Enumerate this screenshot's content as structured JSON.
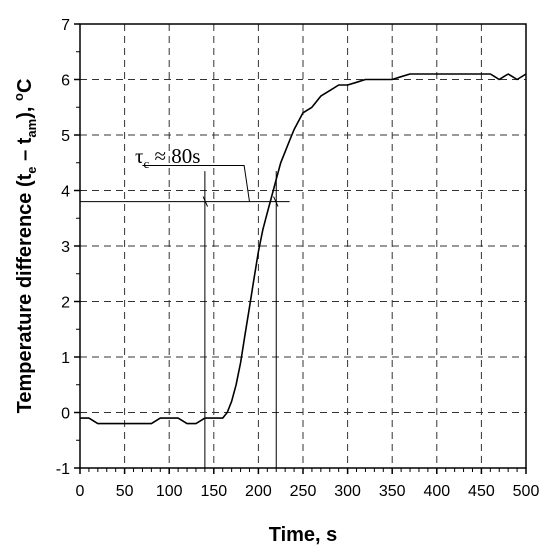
{
  "chart_data": {
    "type": "line",
    "title": "",
    "xlabel": "Time, s",
    "ylabel": {
      "main": "Temperature difference (t",
      "sub1": "e",
      "mid": " – t",
      "sub2": "am",
      "end": "), ",
      "sup": "o",
      "unit": "C"
    },
    "xlim": [
      0,
      500
    ],
    "ylim": [
      -1,
      7
    ],
    "xticks": [
      0,
      50,
      100,
      150,
      200,
      250,
      300,
      350,
      400,
      450,
      500
    ],
    "yticks": [
      -1,
      0,
      1,
      2,
      3,
      4,
      5,
      6,
      7
    ],
    "grid": true,
    "series": [
      {
        "x": [
          0,
          10,
          20,
          30,
          40,
          50,
          60,
          70,
          80,
          90,
          100,
          110,
          120,
          130,
          140,
          150,
          160,
          165,
          170,
          175,
          180,
          185,
          190,
          195,
          200,
          205,
          210,
          215,
          220,
          225,
          230,
          235,
          240,
          250,
          260,
          270,
          280,
          290,
          300,
          310,
          320,
          330,
          340,
          350,
          360,
          370,
          380,
          400,
          420,
          440,
          460,
          465,
          470,
          475,
          480,
          485,
          490,
          500
        ],
        "y": [
          -0.1,
          -0.1,
          -0.2,
          -0.2,
          -0.2,
          -0.2,
          -0.2,
          -0.2,
          -0.2,
          -0.1,
          -0.1,
          -0.1,
          -0.2,
          -0.2,
          -0.1,
          -0.1,
          -0.1,
          0.0,
          0.2,
          0.5,
          0.9,
          1.4,
          1.9,
          2.4,
          2.9,
          3.3,
          3.6,
          3.9,
          4.2,
          4.5,
          4.7,
          4.9,
          5.1,
          5.4,
          5.5,
          5.7,
          5.8,
          5.9,
          5.9,
          5.95,
          6.0,
          6.0,
          6.0,
          6.0,
          6.05,
          6.1,
          6.1,
          6.1,
          6.1,
          6.1,
          6.1,
          6.05,
          6.0,
          6.05,
          6.1,
          6.05,
          6.0,
          6.1
        ]
      }
    ],
    "annotation": {
      "tau_symbol": "τ",
      "tau_sub": "c",
      "text": " ≈ 80s",
      "start_x": 140,
      "end_x": 220,
      "level_y": 3.8
    }
  }
}
